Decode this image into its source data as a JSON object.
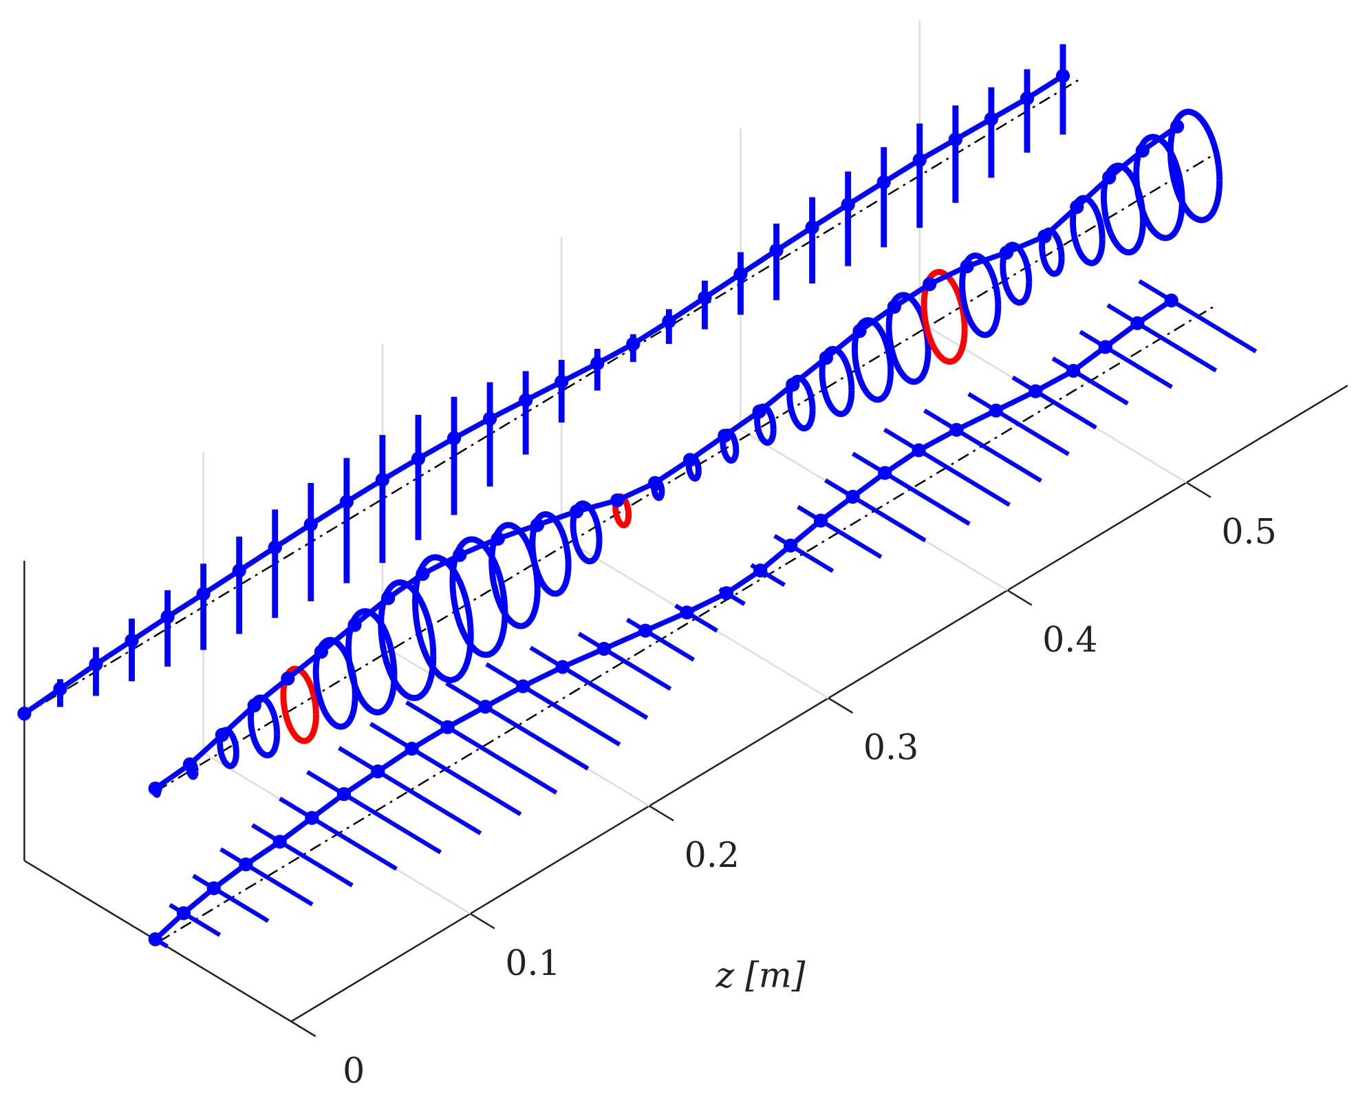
{
  "chart_data": {
    "type": "polarization3d",
    "xlabel": "z [m]",
    "zlim": [
      0,
      0.59
    ],
    "zticks": [
      0,
      0.1,
      0.2,
      0.3,
      0.4,
      0.5
    ],
    "grid": true,
    "z": [
      0,
      0.02,
      0.04,
      0.06,
      0.08,
      0.1,
      0.12,
      0.14,
      0.16,
      0.18,
      0.2,
      0.22,
      0.24,
      0.26,
      0.28,
      0.3,
      0.32,
      0.34,
      0.36,
      0.38,
      0.4,
      0.42,
      0.44,
      0.46,
      0.48,
      0.5,
      0.52,
      0.54,
      0.56,
      0.58
    ],
    "series": [
      {
        "kind": "linear-vertical",
        "color": "#0000ff",
        "values": [
          0.05,
          0.2,
          0.35,
          0.45,
          0.55,
          0.62,
          0.7,
          0.78,
          0.85,
          0.9,
          0.92,
          0.9,
          0.85,
          0.75,
          0.6,
          0.45,
          0.3,
          0.2,
          0.25,
          0.35,
          0.45,
          0.55,
          0.62,
          0.68,
          0.72,
          0.75,
          0.7,
          0.65,
          0.6,
          0.65
        ]
      },
      {
        "kind": "ellipse",
        "color": "#0000ff",
        "highlight": [
          4,
          13,
          22
        ],
        "highlight_color": "#ff0000",
        "values": [
          0.05,
          0.1,
          0.25,
          0.4,
          0.5,
          0.6,
          0.7,
          0.8,
          0.85,
          0.8,
          0.7,
          0.55,
          0.4,
          0.2,
          0.12,
          0.15,
          0.2,
          0.25,
          0.35,
          0.45,
          0.55,
          0.6,
          0.62,
          0.55,
          0.4,
          0.3,
          0.45,
          0.6,
          0.7,
          0.75
        ]
      },
      {
        "kind": "linear-horizontal",
        "color": "#0000ff",
        "values": [
          0.1,
          0.3,
          0.45,
          0.55,
          0.6,
          0.7,
          0.8,
          0.85,
          0.9,
          0.9,
          0.85,
          0.8,
          0.7,
          0.55,
          0.4,
          0.25,
          0.15,
          0.2,
          0.35,
          0.5,
          0.6,
          0.7,
          0.75,
          0.7,
          0.6,
          0.5,
          0.45,
          0.55,
          0.65,
          0.7
        ]
      }
    ]
  }
}
